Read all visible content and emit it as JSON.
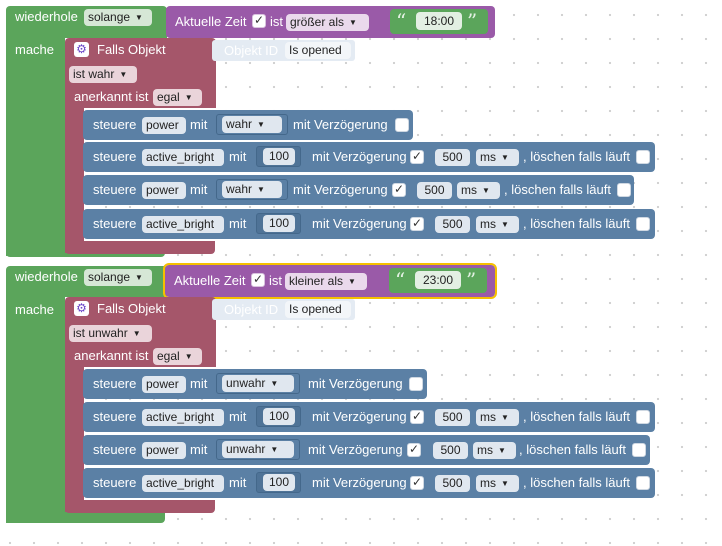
{
  "loops": [
    {
      "loop_label": "wiederhole",
      "mode": "solange",
      "time_label": "Aktuelle Zeit",
      "time_checked": true,
      "ist_label": "ist",
      "comparison": "größer als",
      "time_value": "18:00",
      "do_label": "mache",
      "trigger_label": "Falls Objekt",
      "object_id_label": "Objekt ID",
      "object_value": "Is opened",
      "condition": "ist wahr",
      "ack_label": "anerkannt ist",
      "ack_value": "egal",
      "actions": [
        {
          "steuere": "steuere",
          "target": "power",
          "mit": "mit",
          "value": "wahr",
          "delay_label": "mit Verzögerung",
          "delay_checked": false
        },
        {
          "steuere": "steuere",
          "target": "active_bright",
          "mit": "mit",
          "value": "100",
          "delay_label": "mit Verzögerung",
          "delay_checked": true,
          "delay_value": "500",
          "unit": "ms",
          "clear_label": ", löschen falls läuft",
          "clear_checked": false
        },
        {
          "steuere": "steuere",
          "target": "power",
          "mit": "mit",
          "value": "wahr",
          "delay_label": "mit Verzögerung",
          "delay_checked": true,
          "delay_value": "500",
          "unit": "ms",
          "clear_label": ", löschen falls läuft",
          "clear_checked": false
        },
        {
          "steuere": "steuere",
          "target": "active_bright",
          "mit": "mit",
          "value": "100",
          "delay_label": "mit Verzögerung",
          "delay_checked": true,
          "delay_value": "500",
          "unit": "ms",
          "clear_label": ", löschen falls läuft",
          "clear_checked": false
        }
      ]
    },
    {
      "loop_label": "wiederhole",
      "mode": "solange",
      "time_label": "Aktuelle Zeit",
      "time_checked": true,
      "ist_label": "ist",
      "comparison": "kleiner als",
      "time_value": "23:00",
      "do_label": "mache",
      "trigger_label": "Falls Objekt",
      "object_id_label": "Objekt ID",
      "object_value": "Is opened",
      "condition": "ist unwahr",
      "ack_label": "anerkannt ist",
      "ack_value": "egal",
      "actions": [
        {
          "steuere": "steuere",
          "target": "power",
          "mit": "mit",
          "value": "unwahr",
          "delay_label": "mit Verzögerung",
          "delay_checked": false
        },
        {
          "steuere": "steuere",
          "target": "active_bright",
          "mit": "mit",
          "value": "100",
          "delay_label": "mit Verzögerung",
          "delay_checked": true,
          "delay_value": "500",
          "unit": "ms",
          "clear_label": ", löschen falls läuft",
          "clear_checked": false
        },
        {
          "steuere": "steuere",
          "target": "power",
          "mit": "mit",
          "value": "unwahr",
          "delay_label": "mit Verzögerung",
          "delay_checked": true,
          "delay_value": "500",
          "unit": "ms",
          "clear_label": ", löschen falls läuft",
          "clear_checked": false
        },
        {
          "steuere": "steuere",
          "target": "active_bright",
          "mit": "mit",
          "value": "100",
          "delay_label": "mit Verzögerung",
          "delay_checked": true,
          "delay_value": "500",
          "unit": "ms",
          "clear_label": ", löschen falls läuft",
          "clear_checked": false
        }
      ]
    }
  ],
  "icons": {
    "dropdown": "dropdown-arrow-icon",
    "gear": "gear-icon",
    "check": "checkmark-icon",
    "quote": "quote-icon"
  },
  "colors": {
    "loop": "#5ba55b",
    "time_condition": "#9a5aa8",
    "trigger": "#a5566a",
    "action": "#5b80a5",
    "selected_outline": "#f5c000"
  }
}
